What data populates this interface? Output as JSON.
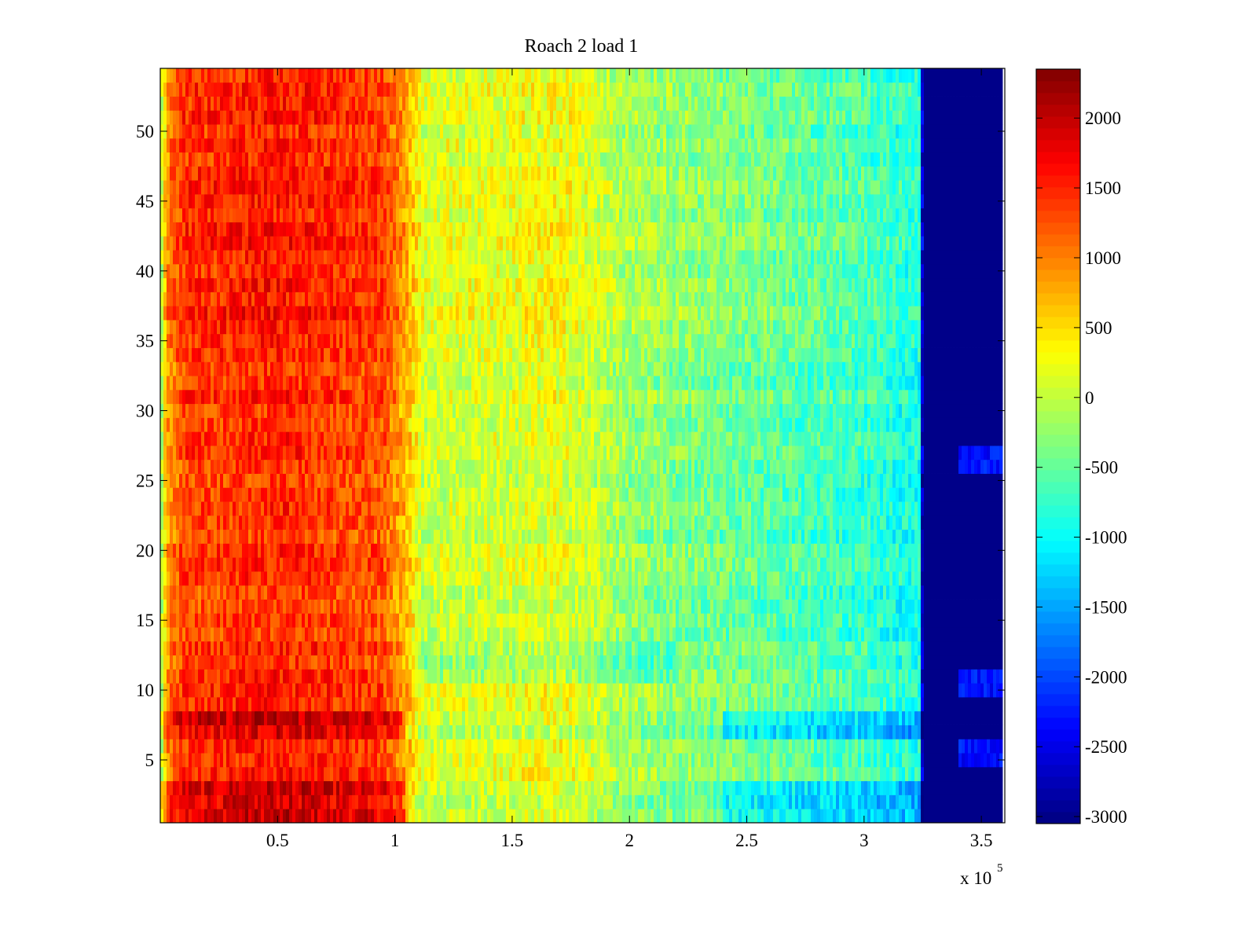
{
  "chart_data": {
    "type": "heatmap",
    "title": "Roach 2 load 1",
    "xlabel": "",
    "ylabel": "",
    "x_multiplier_label": "x 10",
    "x_multiplier_exponent": "5",
    "xlim": [
      0,
      3.6
    ],
    "ylim": [
      0.5,
      54.5
    ],
    "x_ticks": [
      0.5,
      1,
      1.5,
      2,
      2.5,
      3,
      3.5
    ],
    "x_tick_labels": [
      "0.5",
      "1",
      "1.5",
      "2",
      "2.5",
      "3",
      "3.5"
    ],
    "y_ticks": [
      5,
      10,
      15,
      20,
      25,
      30,
      35,
      40,
      45,
      50
    ],
    "y_tick_labels": [
      "5",
      "10",
      "15",
      "20",
      "25",
      "30",
      "35",
      "40",
      "45",
      "50"
    ],
    "colorbar": {
      "colormap": "jet",
      "clim": [
        -3050,
        2350
      ],
      "ticks": [
        2000,
        1500,
        1000,
        500,
        0,
        -500,
        -1000,
        -1500,
        -2000,
        -2500,
        -3000
      ],
      "tick_labels": [
        "2000",
        "1500",
        "1000",
        "500",
        "0",
        "-500",
        "-1000",
        "-1500",
        "-2000",
        "-2500",
        "-3000"
      ]
    },
    "rows": 54,
    "value_profile_x": [
      0,
      0.03,
      0.1,
      0.5,
      0.95,
      1.05,
      1.12,
      1.5,
      1.7,
      2.0,
      2.5,
      3.0,
      3.24,
      3.25,
      3.6
    ],
    "value_profile_v": [
      -300,
      900,
      1350,
      1500,
      1300,
      700,
      100,
      150,
      250,
      -200,
      -450,
      -700,
      -900,
      -3000,
      -3000
    ],
    "noted_features": [
      {
        "rows": [
          7,
          8
        ],
        "note": "strong band, higher on left, lower on right"
      },
      {
        "rows": [
          1,
          2,
          3
        ],
        "note": "strong band, higher on left, lower on right"
      },
      {
        "rows": [
          11,
          12,
          13
        ],
        "x": [
          1.1,
          2.2
        ],
        "note": "slightly lower"
      },
      {
        "rows": [
          26,
          27
        ],
        "x": [
          3.4,
          3.6
        ],
        "value": -2300
      },
      {
        "rows": [
          10,
          11
        ],
        "x": [
          3.4,
          3.6
        ],
        "value": -2300
      },
      {
        "rows": [
          5,
          6
        ],
        "x": [
          3.4,
          3.6
        ],
        "value": -2300
      }
    ]
  }
}
